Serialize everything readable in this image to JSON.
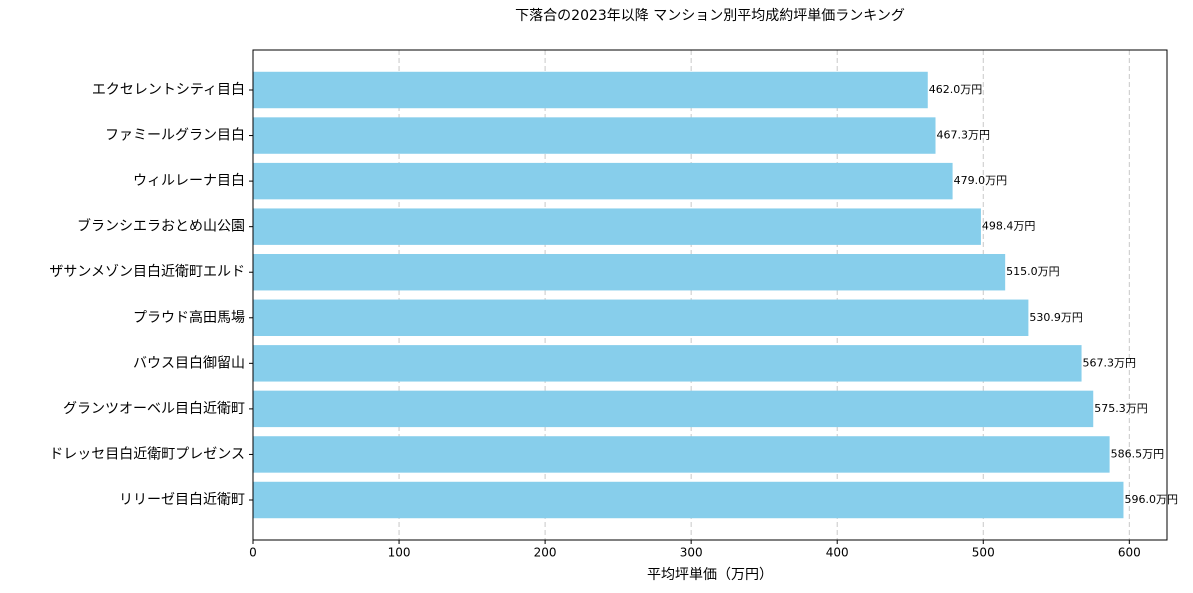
{
  "chart_data": {
    "type": "barh",
    "title": "下落合の2023年以降 マンション別平均成約坪単価ランキング",
    "x_label": "平均坪単価（万円）",
    "categories": [
      "エクセレントシティ目白",
      "ファミールグラン目白",
      "ウィルレーナ目白",
      "ブランシエラおとめ山公園",
      "ザサンメゾン目白近衛町エルド",
      "プラウド高田馬場",
      "バウス目白御留山",
      "グランツオーベル目白近衛町",
      "ドレッセ目白近衛町プレゼンス",
      "リリーゼ目白近衛町"
    ],
    "values": [
      462.0,
      467.3,
      479.0,
      498.4,
      515.0,
      530.9,
      567.3,
      575.3,
      586.5,
      596.0
    ],
    "value_labels": [
      "462.0万円",
      "467.3万円",
      "479.0万円",
      "498.4万円",
      "515.0万円",
      "530.9万円",
      "567.3万円",
      "575.3万円",
      "586.5万円",
      "596.0万円"
    ],
    "color": "#87ceeb",
    "xlim": [
      0,
      625.8
    ],
    "xticks": [
      0,
      100,
      200,
      300,
      400,
      500,
      600
    ],
    "grid": true
  }
}
